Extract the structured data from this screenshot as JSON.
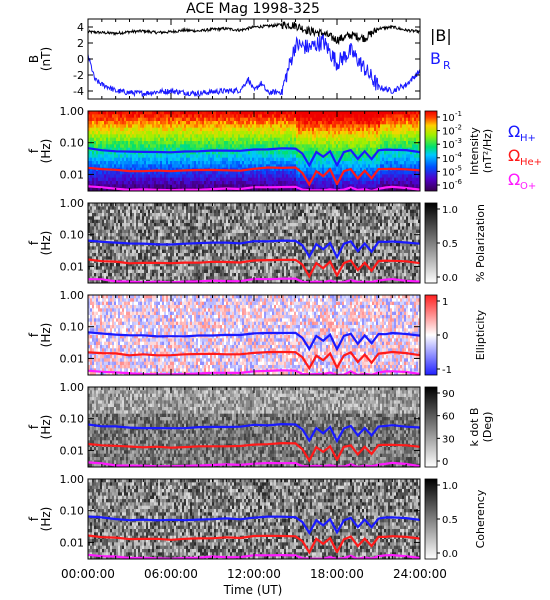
{
  "title": "ACE Mag 1998-325",
  "x_axis": {
    "label": "Time (UT)",
    "ticks": [
      "00:00:00",
      "06:00:00",
      "12:00:00",
      "18:00:00",
      "24:00:00"
    ],
    "range_hours": [
      0,
      24
    ]
  },
  "colors": {
    "b_total": "#000000",
    "b_r": "#1a1aff",
    "h_plus": "#1a1aff",
    "he_plus": "#ff1a1a",
    "o_plus": "#ff1aff"
  },
  "chart_data": [
    {
      "type": "line",
      "name": "mag",
      "ylabel": "B\n(nT)",
      "ylim": [
        -5,
        5
      ],
      "yticks": [
        "4",
        "2",
        "0",
        "-2",
        "-4"
      ],
      "legend": [
        {
          "label": "|B|",
          "color": "#000000"
        },
        {
          "label": "B",
          "sub": "R",
          "color": "#1a1aff"
        }
      ],
      "series": [
        {
          "name": "|B|",
          "x": [
            0,
            1,
            2,
            3,
            4,
            5,
            6,
            7,
            8,
            9,
            10,
            11,
            12,
            13,
            14,
            15,
            16,
            17,
            18,
            19,
            20,
            21,
            22,
            23,
            24
          ],
          "y": [
            3.4,
            3.3,
            3.2,
            3.4,
            3.5,
            3.3,
            3.4,
            3.6,
            3.5,
            3.7,
            3.8,
            3.6,
            4.0,
            4.1,
            4.3,
            4.2,
            3.5,
            3.2,
            2.4,
            3.0,
            2.6,
            3.8,
            4.0,
            3.6,
            3.4
          ]
        },
        {
          "name": "B",
          "x": [
            0,
            0.5,
            1,
            1.5,
            2,
            3,
            4,
            5,
            6,
            7,
            8,
            9,
            10,
            11,
            11.6,
            12,
            12.5,
            13,
            14,
            15,
            16,
            17,
            18,
            19,
            20,
            21,
            22,
            23,
            24
          ],
          "y": [
            0.5,
            -2.6,
            -3.2,
            -3.5,
            -4.0,
            -4.2,
            -4.3,
            -4.1,
            -4.0,
            -4.2,
            -4.3,
            -4.1,
            -4.0,
            -3.9,
            -2.5,
            -4.0,
            -3.0,
            -4.2,
            -4.1,
            1.8,
            1.4,
            2.2,
            -0.5,
            1.0,
            -1.2,
            -3.5,
            -4.0,
            -3.2,
            -1.5
          ]
        }
      ]
    },
    {
      "type": "heatmap",
      "name": "intensity",
      "ylabel": "f\n(Hz)",
      "yscale": "log",
      "ylim": [
        0.003,
        1.0
      ],
      "yticks": [
        "1.00",
        "0.10",
        "0.01"
      ],
      "colorbar": {
        "label": "Intensity\n(nT²/Hz)",
        "ticks": [
          "10",
          "10",
          "10",
          "10",
          "10",
          "10"
        ],
        "tick_exps": [
          "-1",
          "-2",
          "-3",
          "-4",
          "-5",
          "-6"
        ],
        "scale": "rainbow"
      },
      "gyro_legend": [
        {
          "symbol": "Ω",
          "sub": "H+",
          "color": "#1a1aff"
        },
        {
          "symbol": "Ω",
          "sub": "He+",
          "color": "#ff1a1a"
        },
        {
          "symbol": "Ω",
          "sub": "O+",
          "color": "#ff1aff"
        }
      ]
    },
    {
      "type": "heatmap",
      "name": "polarization",
      "ylabel": "f\n(Hz)",
      "yscale": "log",
      "ylim": [
        0.003,
        1.0
      ],
      "yticks": [
        "1.00",
        "0.10",
        "0.01"
      ],
      "colorbar": {
        "label": "% Polarization",
        "ticks": [
          "1.0",
          "0.5",
          "0.0"
        ],
        "scale": "gray"
      }
    },
    {
      "type": "heatmap",
      "name": "ellipticity",
      "ylabel": "f\n(Hz)",
      "yscale": "log",
      "ylim": [
        0.003,
        1.0
      ],
      "yticks": [
        "1.00",
        "0.10",
        "0.01"
      ],
      "colorbar": {
        "label": "Ellipticity",
        "ticks": [
          "1",
          "0",
          "-1"
        ],
        "scale": "bwr"
      }
    },
    {
      "type": "heatmap",
      "name": "kdotb",
      "ylabel": "f\n(Hz)",
      "yscale": "log",
      "ylim": [
        0.003,
        1.0
      ],
      "yticks": [
        "1.00",
        "0.10",
        "0.01"
      ],
      "colorbar": {
        "label": "k dot B\n(Deg)",
        "ticks": [
          "90",
          "60",
          "30",
          "0"
        ],
        "scale": "gray"
      }
    },
    {
      "type": "heatmap",
      "name": "coherency",
      "ylabel": "f\n(Hz)",
      "yscale": "log",
      "ylim": [
        0.003,
        1.0
      ],
      "yticks": [
        "1.00",
        "0.10",
        "0.01"
      ],
      "colorbar": {
        "label": "Coherency",
        "ticks": [
          "1.0",
          "0.5",
          "0.0"
        ],
        "scale": "gray"
      }
    }
  ],
  "gyrofrequency_lines": {
    "x": [
      0,
      1,
      2,
      3,
      4,
      5,
      6,
      7,
      8,
      9,
      10,
      11,
      12,
      13,
      14,
      15,
      15.5,
      16,
      16.5,
      17,
      17.5,
      18,
      18.5,
      19,
      19.5,
      20,
      20.5,
      21,
      21.5,
      22,
      23,
      24
    ],
    "H+": [
      0.065,
      0.06,
      0.055,
      0.052,
      0.052,
      0.051,
      0.05,
      0.052,
      0.053,
      0.055,
      0.056,
      0.054,
      0.062,
      0.063,
      0.066,
      0.064,
      0.045,
      0.02,
      0.05,
      0.035,
      0.055,
      0.02,
      0.05,
      0.06,
      0.03,
      0.052,
      0.03,
      0.058,
      0.06,
      0.062,
      0.058,
      0.052
    ],
    "He+": [
      0.016,
      0.015,
      0.014,
      0.013,
      0.013,
      0.013,
      0.0125,
      0.013,
      0.0133,
      0.0138,
      0.014,
      0.0135,
      0.0155,
      0.016,
      0.0165,
      0.016,
      0.011,
      0.005,
      0.0125,
      0.009,
      0.014,
      0.005,
      0.0125,
      0.015,
      0.0075,
      0.013,
      0.0075,
      0.0145,
      0.015,
      0.0155,
      0.0145,
      0.013
    ],
    "O+": [
      0.0041,
      0.0038,
      0.0035,
      0.0033,
      0.0033,
      0.0032,
      0.0031,
      0.0033,
      0.0033,
      0.0035,
      0.0035,
      0.0034,
      0.0039,
      0.004,
      0.0041,
      0.004,
      0.0032,
      0.0031,
      0.0032,
      0.0031,
      0.0035,
      0.0031,
      0.0032,
      0.0038,
      0.0031,
      0.0033,
      0.0031,
      0.0036,
      0.0038,
      0.0039,
      0.0036,
      0.0033
    ]
  }
}
